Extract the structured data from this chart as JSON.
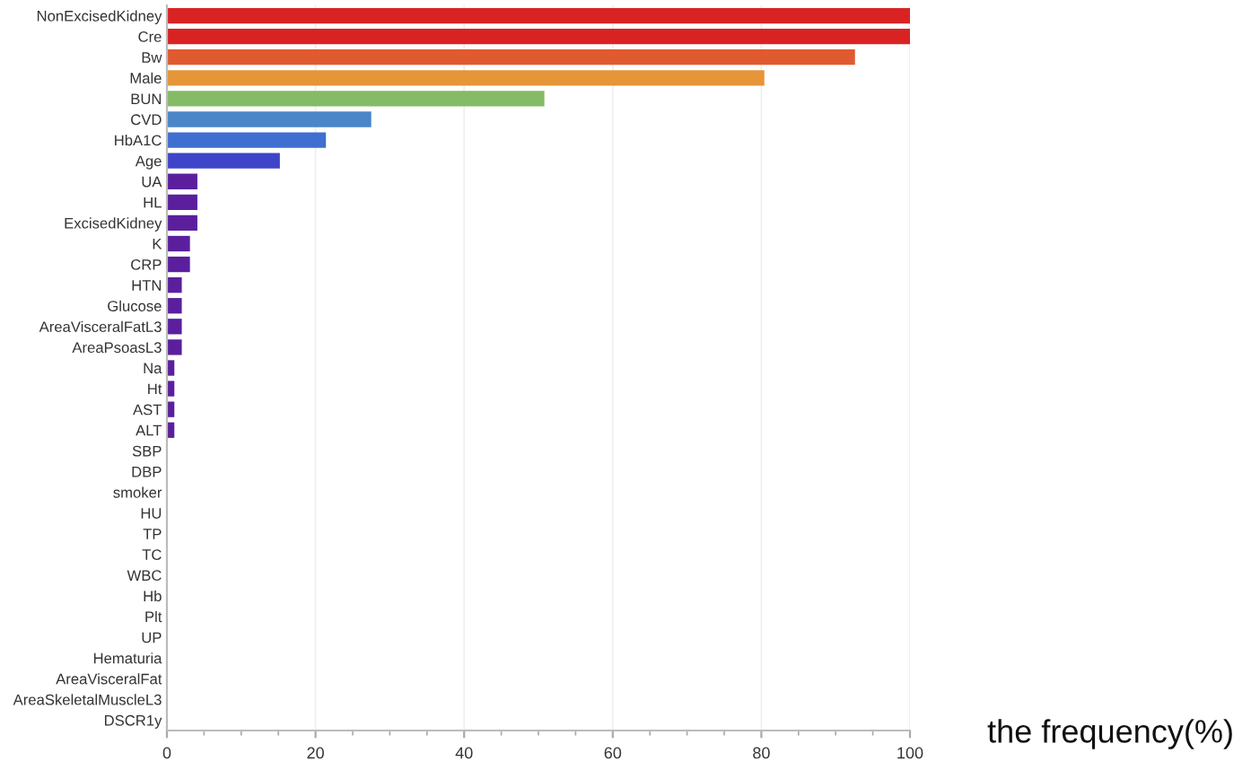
{
  "chart_data": {
    "type": "bar",
    "orientation": "horizontal",
    "xlabel": "the frequency(%)",
    "categories": [
      "NonExcisedKidney",
      "Cre",
      "Bw",
      "Male",
      "BUN",
      "CVD",
      "HbA1C",
      "Age",
      "UA",
      "HL",
      "ExcisedKidney",
      "K",
      "CRP",
      "HTN",
      "Glucose",
      "AreaVisceralFatL3",
      "AreaPsoasL3",
      "Na",
      "Ht",
      "AST",
      "ALT",
      "SBP",
      "DBP",
      "smoker",
      "HU",
      "TP",
      "TC",
      "WBC",
      "Hb",
      "Plt",
      "UP",
      "Hematuria",
      "AreaVisceralFat",
      "AreaSkeletalMuscleL3",
      "DSCR1y"
    ],
    "values": [
      100,
      100,
      92.6,
      80.4,
      50.8,
      27.5,
      21.4,
      15.2,
      4.1,
      4.1,
      4.1,
      3.1,
      3.1,
      2,
      2,
      2,
      2,
      1,
      1,
      1,
      1,
      0,
      0,
      0,
      0,
      0,
      0,
      0,
      0,
      0,
      0,
      0,
      0,
      0,
      0
    ],
    "colors": [
      "#d92323",
      "#d92323",
      "#e05a30",
      "#e69538",
      "#84bb64",
      "#4a86c8",
      "#3f6fd0",
      "#3f45c8",
      "#5b1f9e",
      "#5b1f9e",
      "#5b1f9e",
      "#5b1f9e",
      "#5b1f9e",
      "#5b1f9e",
      "#5b1f9e",
      "#5b1f9e",
      "#5b1f9e",
      "#5b1f9e",
      "#5b1f9e",
      "#5b1f9e",
      "#5b1f9e",
      "#5b1f9e",
      "#5b1f9e",
      "#5b1f9e",
      "#5b1f9e",
      "#5b1f9e",
      "#5b1f9e",
      "#5b1f9e",
      "#5b1f9e",
      "#5b1f9e",
      "#5b1f9e",
      "#5b1f9e",
      "#5b1f9e",
      "#5b1f9e",
      "#5b1f9e"
    ],
    "xlim": [
      0,
      100
    ],
    "xticks": [
      0,
      20,
      40,
      60,
      80,
      100
    ],
    "grid": "x"
  }
}
